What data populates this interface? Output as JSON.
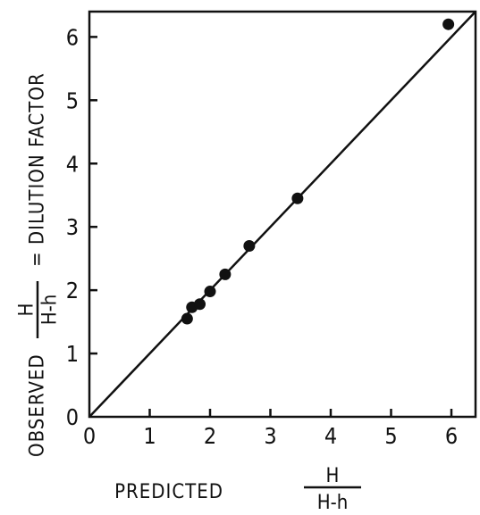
{
  "chart_data": {
    "type": "scatter",
    "x_ticks": [
      "0",
      "1",
      "2",
      "3",
      "4",
      "5",
      "6"
    ],
    "y_ticks": [
      "0",
      "1",
      "2",
      "3",
      "4",
      "5",
      "6"
    ],
    "xlim": [
      0,
      6.4
    ],
    "ylim": [
      0,
      6.4
    ],
    "xlabel": {
      "prefix": "PREDICTED",
      "numerator": "H",
      "denominator": "H-h"
    },
    "ylabel": {
      "prefix": "OBSERVED",
      "numerator": "H",
      "denominator": "H-h",
      "suffix": "= DILUTION   FACTOR"
    },
    "identity_line": {
      "from": [
        0,
        0
      ],
      "to": [
        6.4,
        6.4
      ]
    },
    "points": [
      {
        "x": 1.62,
        "y": 1.55
      },
      {
        "x": 1.7,
        "y": 1.73
      },
      {
        "x": 1.83,
        "y": 1.78
      },
      {
        "x": 2.0,
        "y": 1.98
      },
      {
        "x": 2.25,
        "y": 2.25
      },
      {
        "x": 2.65,
        "y": 2.7
      },
      {
        "x": 3.45,
        "y": 3.45
      },
      {
        "x": 5.95,
        "y": 6.2
      }
    ]
  }
}
